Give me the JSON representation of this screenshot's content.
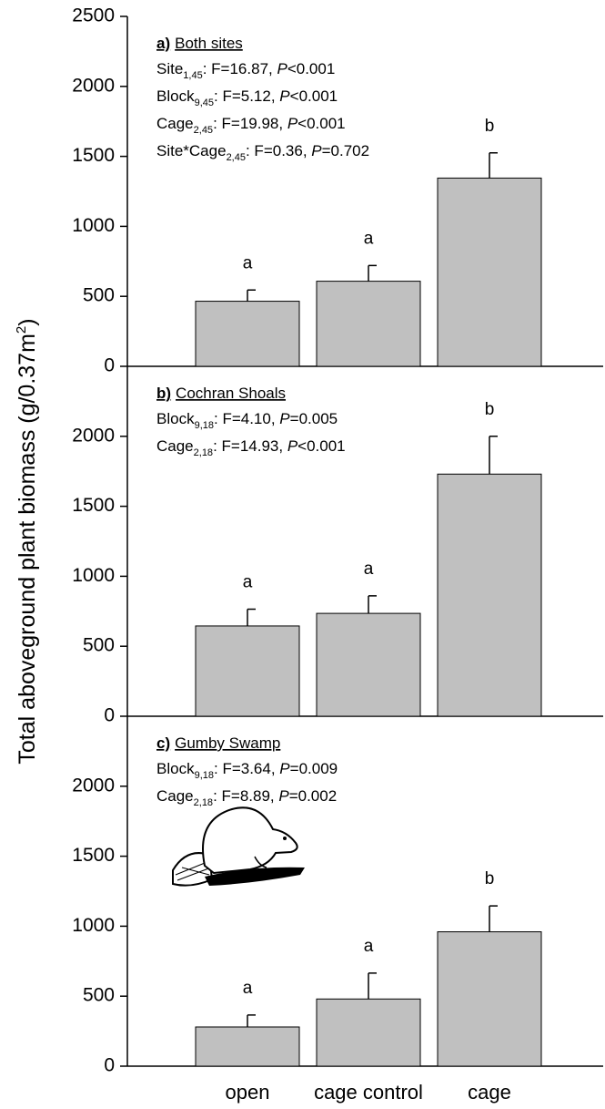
{
  "y_axis_label": {
    "text": "Total aboveground plant biomass (g/0.37m",
    "sup": "2",
    "close": ")"
  },
  "chart_data": [
    {
      "type": "bar",
      "panel": "a)",
      "panel_name": "Both sites",
      "stats": [
        {
          "term": "Site",
          "sub": "1,45",
          "stat": ": F=16.87, ",
          "p": "P",
          "pval": "<0.001"
        },
        {
          "term": "Block",
          "sub": "9,45",
          "stat": ": F=5.12, ",
          "p": "P",
          "pval": "<0.001"
        },
        {
          "term": "Cage",
          "sub": "2,45",
          "stat": ": F=19.98, ",
          "p": "P",
          "pval": "<0.001"
        },
        {
          "term": "Site*Cage",
          "sub": "2,45",
          "stat": ": F=0.36, ",
          "p": "P",
          "pval": "=0.702"
        }
      ],
      "values": [
        465,
        608,
        1345
      ],
      "errors": [
        80,
        112,
        180
      ],
      "letters": [
        "a",
        "a",
        "b"
      ],
      "color": "#c0c0c0",
      "ylim": [
        0,
        2500
      ],
      "yticks": [
        0,
        500,
        1000,
        1500,
        2000,
        2500
      ]
    },
    {
      "type": "bar",
      "panel": "b)",
      "panel_name": "Cochran Shoals",
      "stats": [
        {
          "term": "Block",
          "sub": "9,18",
          "stat": ": F=4.10, ",
          "p": "P",
          "pval": "=0.005"
        },
        {
          "term": "Cage",
          "sub": "2,18",
          "stat": ": F=14.93, ",
          "p": "P",
          "pval": "<0.001"
        }
      ],
      "values": [
        645,
        735,
        1730
      ],
      "errors": [
        120,
        125,
        270
      ],
      "letters": [
        "a",
        "a",
        "b"
      ],
      "color": "#c0c0c0",
      "ylim": [
        0,
        2500
      ],
      "yticks": [
        0,
        500,
        1000,
        1500,
        2000
      ]
    },
    {
      "type": "bar",
      "panel": "c)",
      "panel_name": "Gumby Swamp",
      "stats": [
        {
          "term": "Block",
          "sub": "9,18",
          "stat": ": F=3.64, ",
          "p": "P",
          "pval": "=0.009"
        },
        {
          "term": "Cage",
          "sub": "2,18",
          "stat": ": F=8.89, ",
          "p": "P",
          "pval": "=0.002"
        }
      ],
      "categories": [
        "open",
        "cage control",
        "cage"
      ],
      "values": [
        280,
        480,
        960
      ],
      "errors": [
        85,
        185,
        185
      ],
      "letters": [
        "a",
        "a",
        "b"
      ],
      "color": "#c0c0c0",
      "ylim": [
        0,
        2500
      ],
      "yticks": [
        0,
        500,
        1000,
        1500,
        2000
      ]
    }
  ]
}
